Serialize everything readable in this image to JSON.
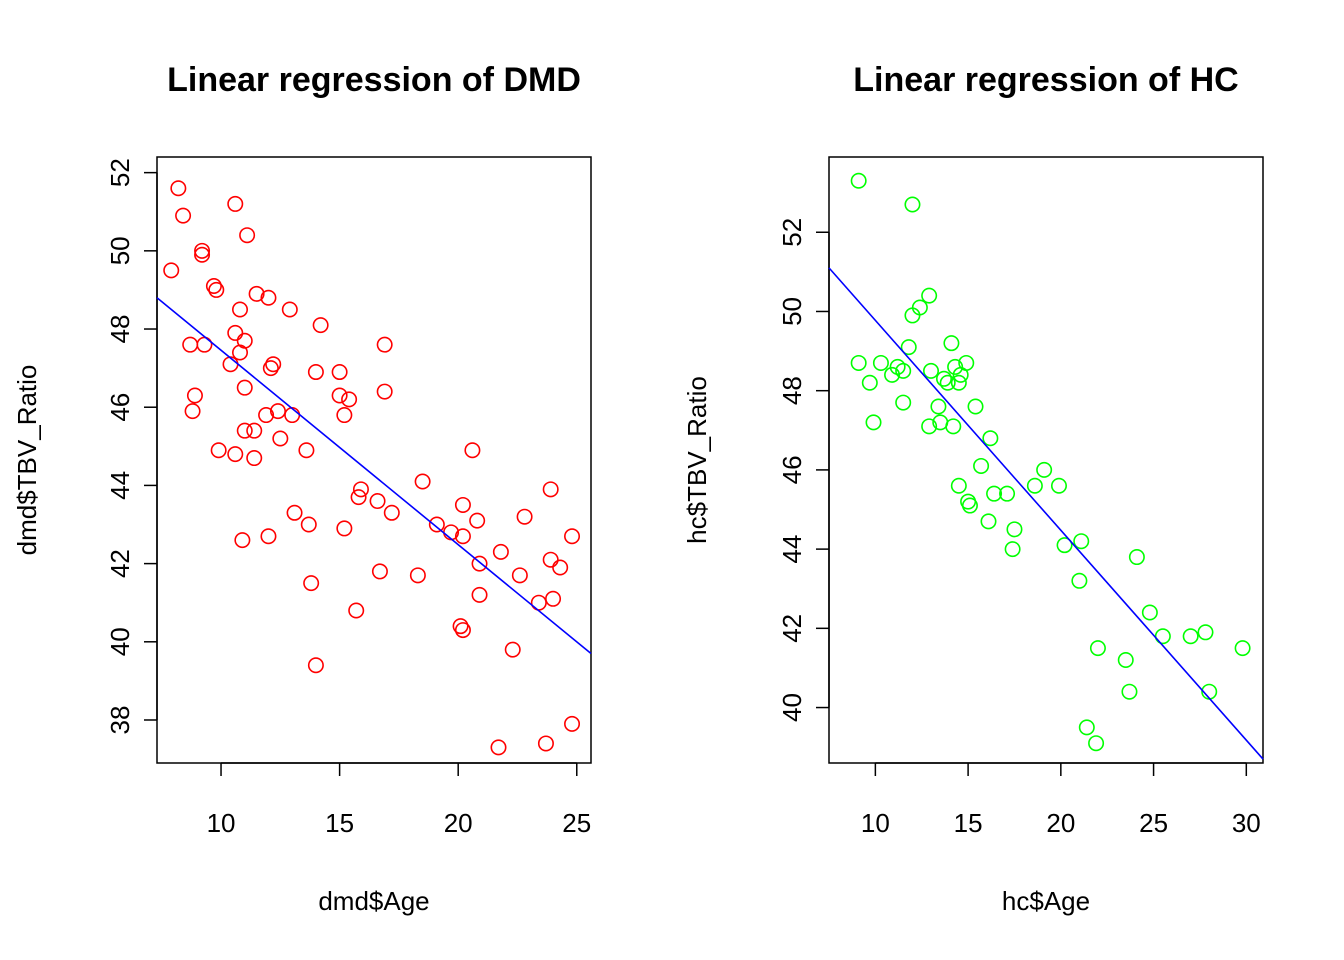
{
  "chart_data": [
    {
      "type": "scatter",
      "title": "Linear regression of DMD",
      "xlabel": "dmd$Age",
      "ylabel": "dmd$TBV_Ratio",
      "xlim": [
        7.3,
        25.6
      ],
      "ylim": [
        36.9,
        52.4
      ],
      "xticks": [
        10,
        15,
        20,
        25
      ],
      "yticks": [
        38,
        40,
        42,
        44,
        46,
        48,
        50,
        52
      ],
      "point_color": "#ff0000",
      "line_color": "#0000ff",
      "regression_line": {
        "x": [
          7.3,
          25.6
        ],
        "y": [
          48.8,
          39.7
        ]
      },
      "points": [
        {
          "x": 7.9,
          "y": 49.5
        },
        {
          "x": 8.2,
          "y": 51.6
        },
        {
          "x": 8.4,
          "y": 50.9
        },
        {
          "x": 8.7,
          "y": 47.6
        },
        {
          "x": 8.8,
          "y": 45.9
        },
        {
          "x": 8.9,
          "y": 46.3
        },
        {
          "x": 9.2,
          "y": 50.0
        },
        {
          "x": 9.2,
          "y": 49.9
        },
        {
          "x": 9.3,
          "y": 47.6
        },
        {
          "x": 9.7,
          "y": 49.1
        },
        {
          "x": 9.8,
          "y": 49.0
        },
        {
          "x": 9.9,
          "y": 44.9
        },
        {
          "x": 10.4,
          "y": 47.1
        },
        {
          "x": 10.6,
          "y": 47.9
        },
        {
          "x": 10.6,
          "y": 44.8
        },
        {
          "x": 10.6,
          "y": 51.2
        },
        {
          "x": 10.8,
          "y": 47.4
        },
        {
          "x": 10.8,
          "y": 48.5
        },
        {
          "x": 10.9,
          "y": 42.6
        },
        {
          "x": 11.0,
          "y": 46.5
        },
        {
          "x": 11.0,
          "y": 45.4
        },
        {
          "x": 11.0,
          "y": 47.7
        },
        {
          "x": 11.1,
          "y": 50.4
        },
        {
          "x": 11.4,
          "y": 45.4
        },
        {
          "x": 11.4,
          "y": 44.7
        },
        {
          "x": 11.5,
          "y": 48.9
        },
        {
          "x": 11.9,
          "y": 45.8
        },
        {
          "x": 12.0,
          "y": 48.8
        },
        {
          "x": 12.0,
          "y": 42.7
        },
        {
          "x": 12.1,
          "y": 47.0
        },
        {
          "x": 12.2,
          "y": 47.1
        },
        {
          "x": 12.4,
          "y": 45.9
        },
        {
          "x": 12.5,
          "y": 45.2
        },
        {
          "x": 12.9,
          "y": 48.5
        },
        {
          "x": 13.0,
          "y": 45.8
        },
        {
          "x": 13.1,
          "y": 43.3
        },
        {
          "x": 13.6,
          "y": 44.9
        },
        {
          "x": 13.7,
          "y": 43.0
        },
        {
          "x": 13.8,
          "y": 41.5
        },
        {
          "x": 14.0,
          "y": 46.9
        },
        {
          "x": 14.0,
          "y": 39.4
        },
        {
          "x": 14.2,
          "y": 48.1
        },
        {
          "x": 15.0,
          "y": 46.9
        },
        {
          "x": 15.0,
          "y": 46.3
        },
        {
          "x": 15.2,
          "y": 42.9
        },
        {
          "x": 15.2,
          "y": 45.8
        },
        {
          "x": 15.4,
          "y": 46.2
        },
        {
          "x": 15.7,
          "y": 40.8
        },
        {
          "x": 15.8,
          "y": 43.7
        },
        {
          "x": 15.9,
          "y": 43.9
        },
        {
          "x": 16.6,
          "y": 43.6
        },
        {
          "x": 16.7,
          "y": 41.8
        },
        {
          "x": 16.9,
          "y": 46.4
        },
        {
          "x": 16.9,
          "y": 47.6
        },
        {
          "x": 17.2,
          "y": 43.3
        },
        {
          "x": 18.3,
          "y": 41.7
        },
        {
          "x": 18.5,
          "y": 44.1
        },
        {
          "x": 19.1,
          "y": 43.0
        },
        {
          "x": 19.7,
          "y": 42.8
        },
        {
          "x": 20.1,
          "y": 40.4
        },
        {
          "x": 20.2,
          "y": 40.3
        },
        {
          "x": 20.2,
          "y": 42.7
        },
        {
          "x": 20.2,
          "y": 43.5
        },
        {
          "x": 20.6,
          "y": 44.9
        },
        {
          "x": 20.8,
          "y": 43.1
        },
        {
          "x": 20.9,
          "y": 42.0
        },
        {
          "x": 20.9,
          "y": 41.2
        },
        {
          "x": 21.7,
          "y": 37.3
        },
        {
          "x": 21.8,
          "y": 42.3
        },
        {
          "x": 22.3,
          "y": 39.8
        },
        {
          "x": 22.6,
          "y": 41.7
        },
        {
          "x": 22.8,
          "y": 43.2
        },
        {
          "x": 23.4,
          "y": 41.0
        },
        {
          "x": 23.7,
          "y": 37.4
        },
        {
          "x": 23.9,
          "y": 43.9
        },
        {
          "x": 23.9,
          "y": 42.1
        },
        {
          "x": 24.0,
          "y": 41.1
        },
        {
          "x": 24.3,
          "y": 41.9
        },
        {
          "x": 24.8,
          "y": 37.9
        },
        {
          "x": 24.8,
          "y": 42.7
        }
      ]
    },
    {
      "type": "scatter",
      "title": "Linear regression of HC",
      "xlabel": "hc$Age",
      "ylabel": "hc$TBV_Ratio",
      "xlim": [
        7.5,
        30.9
      ],
      "ylim": [
        38.6,
        53.9
      ],
      "xticks": [
        10,
        15,
        20,
        25,
        30
      ],
      "yticks": [
        40,
        42,
        44,
        46,
        48,
        50,
        52
      ],
      "point_color": "#00ff00",
      "line_color": "#0000ff",
      "regression_line": {
        "x": [
          7.5,
          30.9
        ],
        "y": [
          51.1,
          38.7
        ]
      },
      "points": [
        {
          "x": 9.1,
          "y": 53.3
        },
        {
          "x": 9.1,
          "y": 48.7
        },
        {
          "x": 9.7,
          "y": 48.2
        },
        {
          "x": 9.9,
          "y": 47.2
        },
        {
          "x": 10.3,
          "y": 48.7
        },
        {
          "x": 10.9,
          "y": 48.4
        },
        {
          "x": 11.2,
          "y": 48.6
        },
        {
          "x": 11.5,
          "y": 48.5
        },
        {
          "x": 11.5,
          "y": 47.7
        },
        {
          "x": 11.8,
          "y": 49.1
        },
        {
          "x": 12.0,
          "y": 49.9
        },
        {
          "x": 12.0,
          "y": 52.7
        },
        {
          "x": 12.4,
          "y": 50.1
        },
        {
          "x": 12.9,
          "y": 50.4
        },
        {
          "x": 12.9,
          "y": 47.1
        },
        {
          "x": 13.0,
          "y": 48.5
        },
        {
          "x": 13.4,
          "y": 47.6
        },
        {
          "x": 13.5,
          "y": 47.2
        },
        {
          "x": 13.7,
          "y": 48.3
        },
        {
          "x": 13.9,
          "y": 48.2
        },
        {
          "x": 14.1,
          "y": 49.2
        },
        {
          "x": 14.2,
          "y": 47.1
        },
        {
          "x": 14.3,
          "y": 48.6
        },
        {
          "x": 14.5,
          "y": 45.6
        },
        {
          "x": 14.5,
          "y": 48.2
        },
        {
          "x": 14.6,
          "y": 48.4
        },
        {
          "x": 14.9,
          "y": 48.7
        },
        {
          "x": 15.0,
          "y": 45.2
        },
        {
          "x": 15.1,
          "y": 45.1
        },
        {
          "x": 15.4,
          "y": 47.6
        },
        {
          "x": 15.7,
          "y": 46.1
        },
        {
          "x": 16.1,
          "y": 44.7
        },
        {
          "x": 16.2,
          "y": 46.8
        },
        {
          "x": 16.4,
          "y": 45.4
        },
        {
          "x": 17.1,
          "y": 45.4
        },
        {
          "x": 17.4,
          "y": 44.0
        },
        {
          "x": 17.5,
          "y": 44.5
        },
        {
          "x": 18.6,
          "y": 45.6
        },
        {
          "x": 19.1,
          "y": 46.0
        },
        {
          "x": 19.9,
          "y": 45.6
        },
        {
          "x": 20.2,
          "y": 44.1
        },
        {
          "x": 21.0,
          "y": 43.2
        },
        {
          "x": 21.1,
          "y": 44.2
        },
        {
          "x": 21.4,
          "y": 39.5
        },
        {
          "x": 21.9,
          "y": 39.1
        },
        {
          "x": 22.0,
          "y": 41.5
        },
        {
          "x": 23.5,
          "y": 41.2
        },
        {
          "x": 23.7,
          "y": 40.4
        },
        {
          "x": 24.1,
          "y": 43.8
        },
        {
          "x": 24.8,
          "y": 42.4
        },
        {
          "x": 25.5,
          "y": 41.8
        },
        {
          "x": 27.0,
          "y": 41.8
        },
        {
          "x": 27.8,
          "y": 41.9
        },
        {
          "x": 28.0,
          "y": 40.4
        },
        {
          "x": 29.8,
          "y": 41.5
        }
      ]
    }
  ]
}
